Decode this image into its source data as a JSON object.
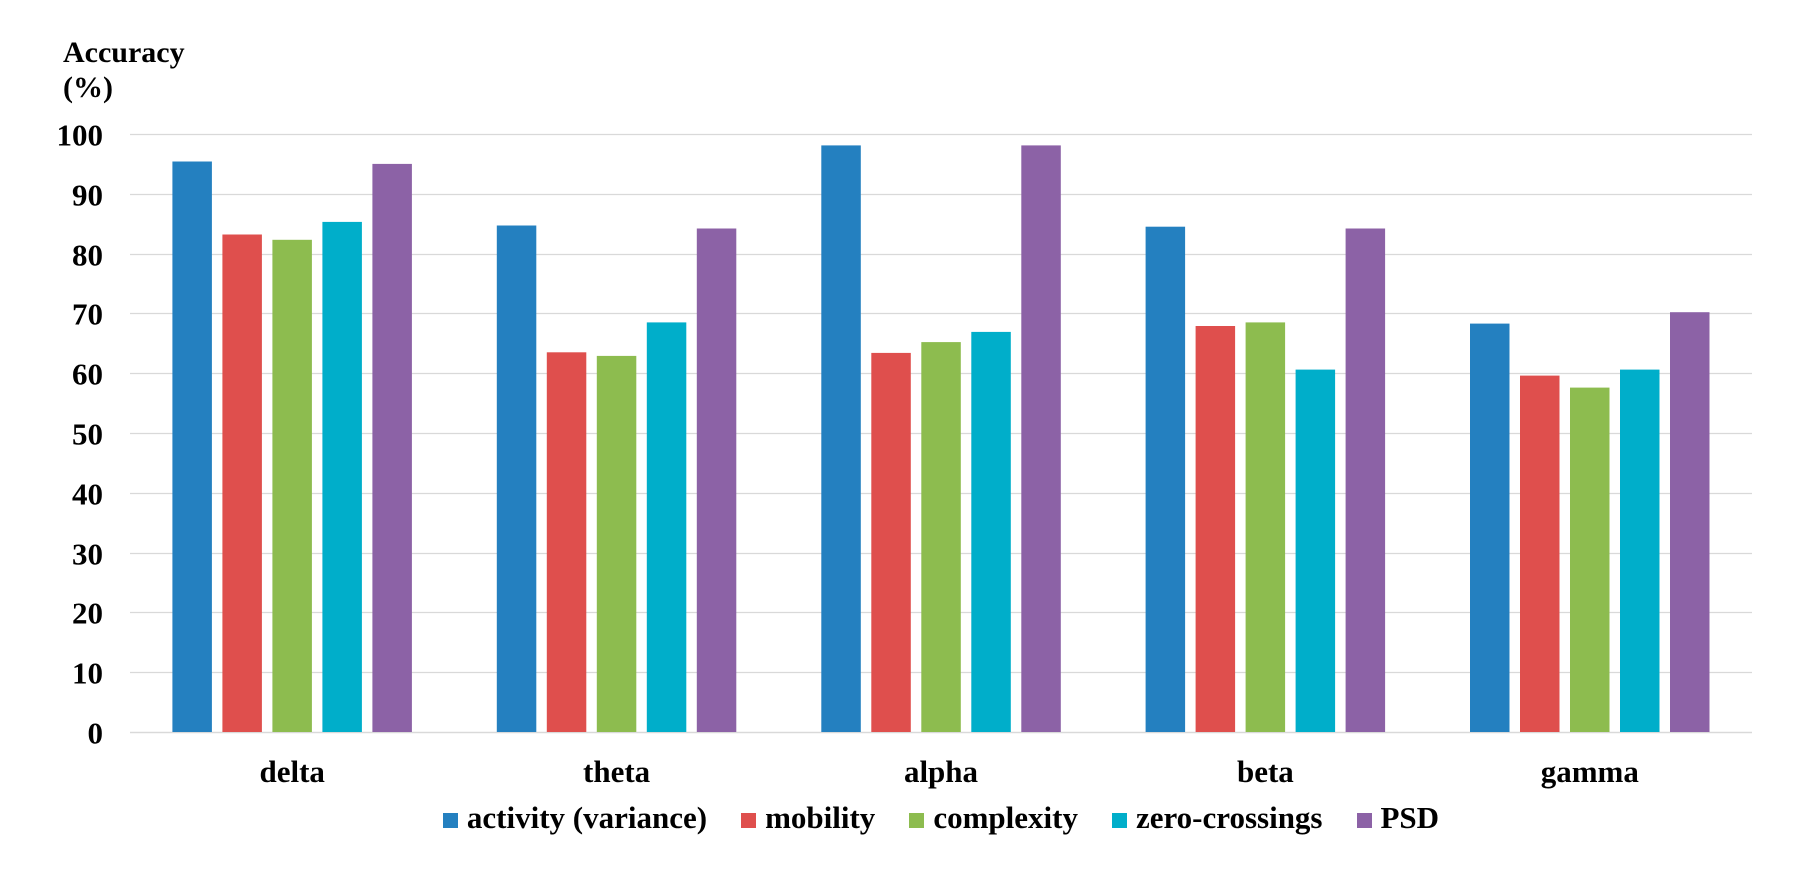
{
  "chart_data": {
    "type": "bar",
    "title": "",
    "ylabel": [
      "Accuracy",
      "(%)"
    ],
    "xlabel": "",
    "categories": [
      "delta",
      "theta",
      "alpha",
      "beta",
      "gamma"
    ],
    "ylim": [
      0,
      100
    ],
    "yticks": [
      0,
      10,
      20,
      30,
      40,
      50,
      60,
      70,
      80,
      90,
      100
    ],
    "ytick_labels": [
      "0",
      "10",
      "20",
      "30",
      "40",
      "50",
      "60",
      "70",
      "80",
      "90",
      "100"
    ],
    "grid": "horizontal",
    "legend_position": "bottom",
    "series": [
      {
        "name": "activity (variance)",
        "color": "#2480C0",
        "values": [
          95.4,
          84.7,
          98.1,
          84.5,
          68.3
        ]
      },
      {
        "name": "mobility",
        "color": "#DF4F4D",
        "values": [
          83.2,
          63.5,
          63.4,
          67.9,
          59.6
        ]
      },
      {
        "name": "complexity",
        "color": "#8DBC4F",
        "values": [
          82.3,
          62.9,
          65.2,
          68.5,
          57.6
        ]
      },
      {
        "name": "zero-crossings",
        "color": "#00AECA",
        "values": [
          85.3,
          68.5,
          66.9,
          60.6,
          60.6
        ]
      },
      {
        "name": "PSD",
        "color": "#8C62A6",
        "values": [
          95.0,
          84.2,
          98.1,
          84.2,
          70.2
        ]
      }
    ],
    "gridline_color": "#D9D9D9"
  }
}
